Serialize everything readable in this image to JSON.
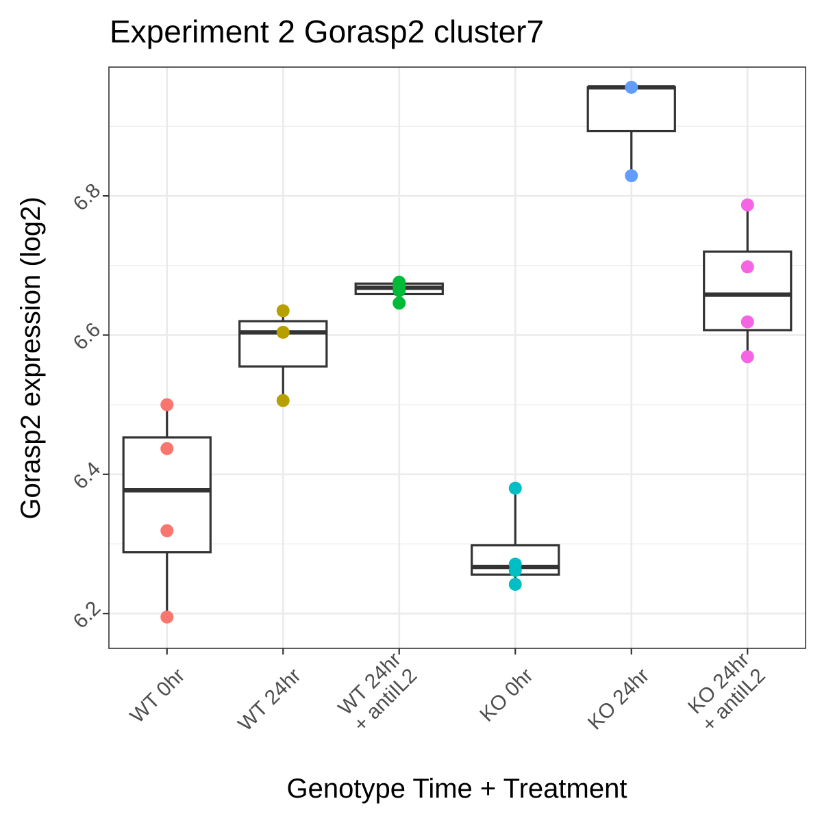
{
  "chart_data": {
    "type": "box",
    "title": "Experiment 2 Gorasp2 cluster7",
    "xlabel": "Genotype Time + Treatment",
    "ylabel": "Gorasp2 expression (log2)",
    "ylim": [
      6.15,
      6.985
    ],
    "yticks": [
      6.2,
      6.4,
      6.6,
      6.8
    ],
    "ytick_labels": [
      "6.2",
      "6.4",
      "6.6",
      "6.8"
    ],
    "grid": true,
    "legend": "none",
    "groups": [
      {
        "label_lines": [
          "WT 0hr"
        ],
        "color": "#F8766D",
        "box": {
          "lower_whisker": 6.195,
          "q1": 6.288,
          "median": 6.377,
          "q3": 6.453,
          "upper_whisker": 6.5
        },
        "points": [
          6.5,
          6.437,
          6.319,
          6.195
        ]
      },
      {
        "label_lines": [
          "WT 24hr"
        ],
        "color": "#B79F00",
        "box": {
          "lower_whisker": 6.506,
          "q1": 6.555,
          "median": 6.604,
          "q3": 6.62,
          "upper_whisker": 6.635
        },
        "points": [
          6.635,
          6.604,
          6.506
        ]
      },
      {
        "label_lines": [
          "WT 24hr",
          "+ antiIL2"
        ],
        "color": "#00BA38",
        "box": {
          "lower_whisker": 6.646,
          "q1": 6.659,
          "median": 6.668,
          "q3": 6.674,
          "upper_whisker": 6.676
        },
        "points": [
          6.676,
          6.67,
          6.664,
          6.646
        ]
      },
      {
        "label_lines": [
          "KO 0hr"
        ],
        "color": "#00BFC4",
        "box": {
          "lower_whisker": 6.242,
          "q1": 6.256,
          "median": 6.267,
          "q3": 6.298,
          "upper_whisker": 6.38
        },
        "points": [
          6.38,
          6.271,
          6.262,
          6.242
        ]
      },
      {
        "label_lines": [
          "KO 24hr"
        ],
        "color": "#619CFF",
        "box": {
          "lower_whisker": 6.829,
          "q1": 6.893,
          "median": 6.956,
          "q3": 6.956,
          "upper_whisker": 6.956
        },
        "points": [
          6.956,
          6.829
        ]
      },
      {
        "label_lines": [
          "KO 24hr",
          "+ antiIL2"
        ],
        "color": "#F564E3",
        "box": {
          "lower_whisker": 6.569,
          "q1": 6.607,
          "median": 6.658,
          "q3": 6.72,
          "upper_whisker": 6.787
        },
        "points": [
          6.787,
          6.698,
          6.619,
          6.569
        ]
      }
    ]
  }
}
